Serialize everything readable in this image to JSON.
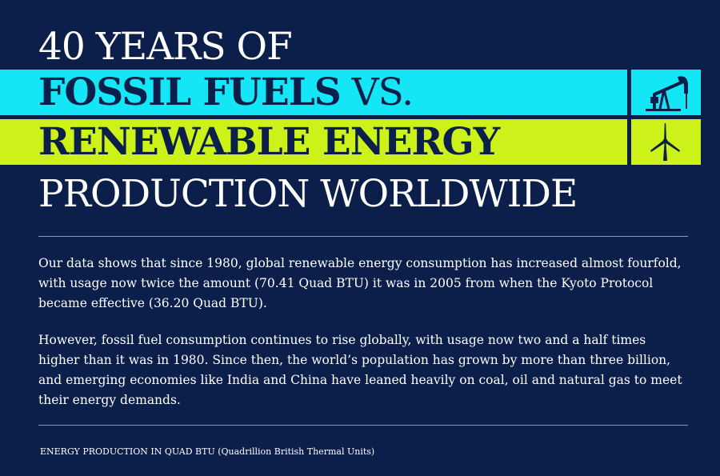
{
  "title": {
    "line1": "40 YEARS OF",
    "line2_bold": "FOSSIL FUELS",
    "line2_rest": " VS.",
    "line3": "RENEWABLE ENERGY",
    "line4": "PRODUCTION WORLDWIDE"
  },
  "icons": {
    "fossil": "oil-pump-icon",
    "renewable": "wind-turbine-icon"
  },
  "colors": {
    "background": "#0b1f4a",
    "fossil_band": "#14e6f5",
    "renewable_band": "#ccf21a",
    "text": "#ffffff"
  },
  "paragraphs": [
    "Our data shows that since 1980, global renewable energy consumption has increased almost fourfold, with usage now twice the amount (70.41 Quad BTU) it was in 2005 from when the Kyoto Protocol became effective (36.20 Quad BTU).",
    "However, fossil fuel consumption continues to rise globally, with usage now two and a half times higher than it was in 1980. Since then, the world’s population has grown by more than three billion, and emerging economies like India and China have leaned heavily on coal, oil and natural gas to meet their energy demands."
  ],
  "footnote": "ENERGY PRODUCTION IN QUAD BTU (Quadrillion British Thermal Units)"
}
